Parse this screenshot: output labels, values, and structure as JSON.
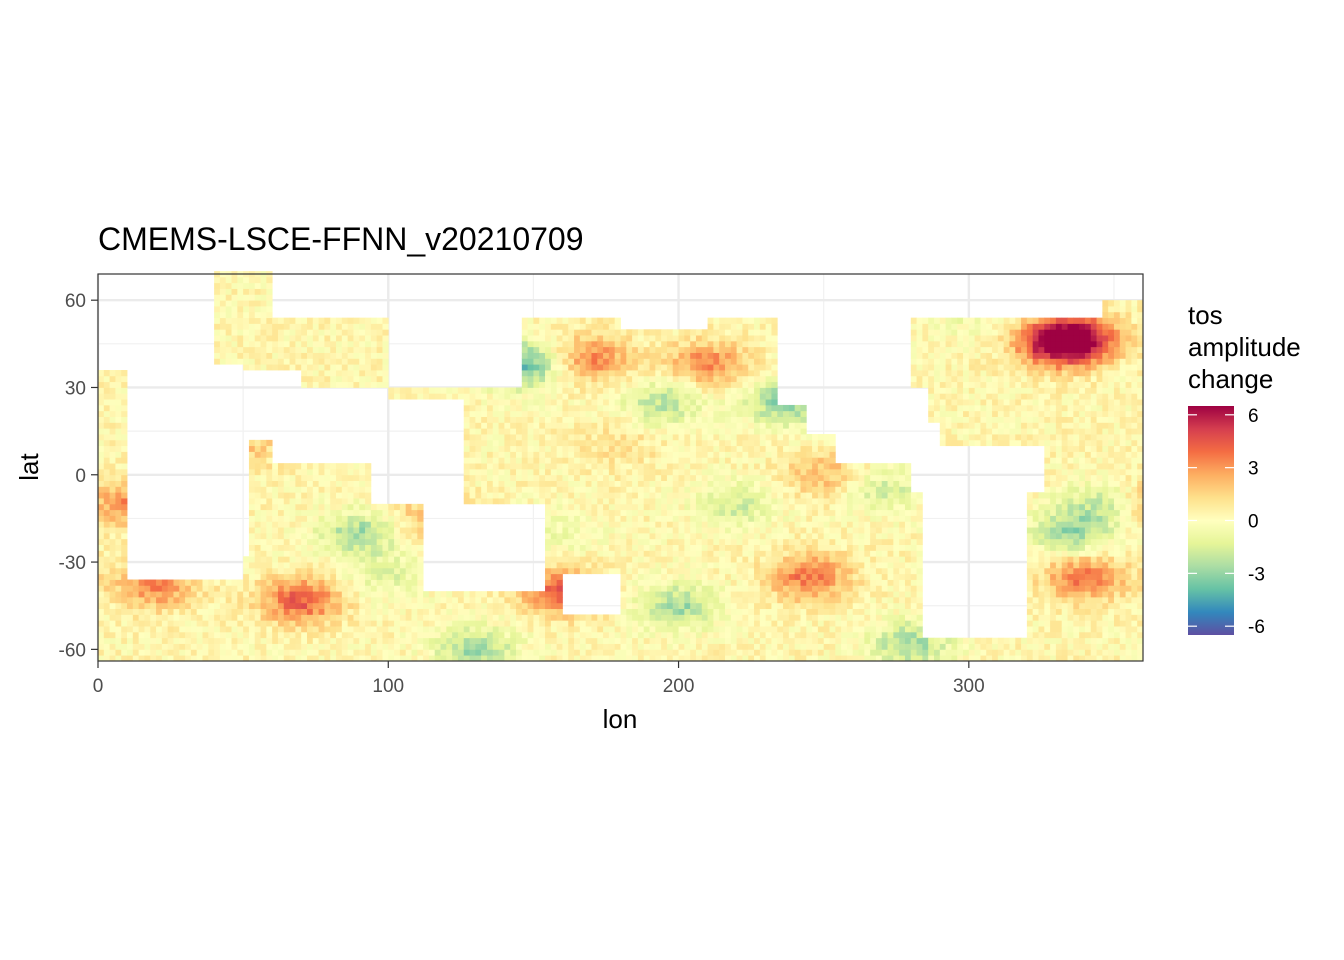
{
  "chart_data": {
    "type": "heatmap",
    "title": "CMEMS-LSCE-FFNN_v20210709",
    "xlabel": "lon",
    "ylabel": "lat",
    "xlim": [
      0,
      360
    ],
    "ylim": [
      -64,
      69
    ],
    "x_ticks": [
      0,
      100,
      200,
      300
    ],
    "y_ticks": [
      -60,
      -30,
      0,
      30,
      60
    ],
    "x_tick_labels": [
      "0",
      "100",
      "200",
      "300"
    ],
    "y_tick_labels": [
      "-60",
      "-30",
      "0",
      "30",
      "60"
    ],
    "grid": true,
    "legend": {
      "title_lines": [
        "tos",
        "amplitude",
        "change"
      ],
      "position": "right",
      "range": [
        -6.5,
        6.5
      ],
      "ticks": [
        6,
        3,
        0,
        -3,
        -6
      ],
      "tick_labels": [
        "6",
        "3",
        "0",
        "-3",
        "-6"
      ],
      "palette": [
        "#5E4FA2",
        "#3288BD",
        "#66C2A5",
        "#ABDDA4",
        "#E6F598",
        "#FFFFBF",
        "#FEE08B",
        "#FDAE61",
        "#F46D43",
        "#D53E4F",
        "#9E0142"
      ]
    },
    "anomaly_regions": [
      {
        "lon": 170,
        "lat": 40,
        "value": 3
      },
      {
        "lon": 210,
        "lat": 38,
        "value": 3
      },
      {
        "lon": 195,
        "lat": 25,
        "value": -2.5
      },
      {
        "lon": 237,
        "lat": 25,
        "value": -3.5
      },
      {
        "lon": 145,
        "lat": 38,
        "value": -4.5
      },
      {
        "lon": 250,
        "lat": 0,
        "value": 2
      },
      {
        "lon": 220,
        "lat": -10,
        "value": -2
      },
      {
        "lon": 270,
        "lat": -5,
        "value": -2
      },
      {
        "lon": 245,
        "lat": -35,
        "value": 3.5
      },
      {
        "lon": 160,
        "lat": -40,
        "value": 4
      },
      {
        "lon": 200,
        "lat": -45,
        "value": -3
      },
      {
        "lon": 70,
        "lat": -43,
        "value": 4
      },
      {
        "lon": 20,
        "lat": -38,
        "value": 3
      },
      {
        "lon": 100,
        "lat": -35,
        "value": -1.5
      },
      {
        "lon": 90,
        "lat": -20,
        "value": -3
      },
      {
        "lon": 115,
        "lat": -15,
        "value": 2
      },
      {
        "lon": 330,
        "lat": 45,
        "value": 4.5
      },
      {
        "lon": 337,
        "lat": 47,
        "value": 5.5
      },
      {
        "lon": 340,
        "lat": -35,
        "value": 3.5
      },
      {
        "lon": 335,
        "lat": -20,
        "value": -3
      },
      {
        "lon": 345,
        "lat": -10,
        "value": -2
      },
      {
        "lon": 8,
        "lat": -10,
        "value": 3
      },
      {
        "lon": 130,
        "lat": -60,
        "value": -3
      },
      {
        "lon": 280,
        "lat": -58,
        "value": -3
      },
      {
        "lon": 300,
        "lat": 55,
        "value": -1
      },
      {
        "lon": 50,
        "lat": 10,
        "value": 1.5
      },
      {
        "lon": 180,
        "lat": 10,
        "value": 1
      },
      {
        "lon": 160,
        "lat": -20,
        "value": -1
      }
    ]
  }
}
